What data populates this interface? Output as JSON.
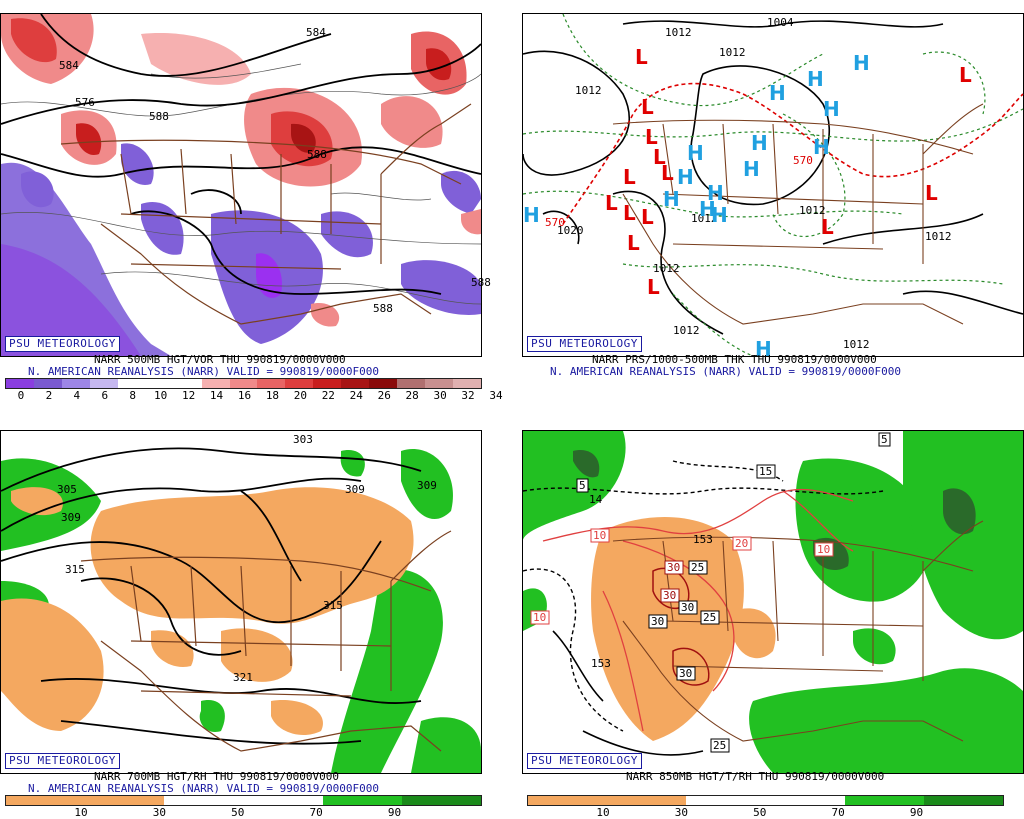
{
  "panels": {
    "p1": {
      "badge": "PSU METEOROLOGY",
      "line1": "NARR 500MB HGT/VOR THU 990819/0000V000",
      "line2": "N. AMERICAN REANALYSIS (NARR) VALID = 990819/0000F000",
      "contours": [
        "584",
        "576",
        "588",
        "588",
        "588",
        "588"
      ],
      "scale_ticks": [
        "0",
        "2",
        "4",
        "6",
        "8",
        "10",
        "12",
        "14",
        "16",
        "18",
        "20",
        "22",
        "24",
        "26",
        "28",
        "30",
        "32",
        "34"
      ],
      "scale_colors": [
        "#8a3ee0",
        "#7a5ad0",
        "#9d86e6",
        "#c6b8f0",
        "#ffffff",
        "#ffffff",
        "#ffffff",
        "#f6b0b0",
        "#f08a8a",
        "#e86464",
        "#de3e3e",
        "#c81e1e",
        "#a81414",
        "#8a0a0a",
        "#b07070",
        "#c89090",
        "#e0b0b0"
      ]
    },
    "p2": {
      "badge": "PSU METEOROLOGY",
      "line1": "NARR PRS/1000-500MB THK THU 990819/0000V000",
      "line2": "N. AMERICAN REANALYSIS (NARR) VALID = 990819/0000F000",
      "contours": [
        "1004",
        "1012",
        "1012",
        "1012",
        "1020",
        "1012",
        "1012",
        "1012",
        "1012",
        "1012",
        "1012",
        "570",
        "570"
      ]
    },
    "p3": {
      "badge": "PSU METEOROLOGY",
      "line1": "NARR 700MB HGT/RH THU 990819/0000V000",
      "line2": "N. AMERICAN REANALYSIS (NARR) VALID = 990819/0000F000",
      "contours": [
        "303",
        "309",
        "305",
        "309",
        "315",
        "315",
        "321"
      ],
      "scale_ticks": [
        "10",
        "30",
        "50",
        "70",
        "90"
      ]
    },
    "p4": {
      "badge": "PSU METEOROLOGY",
      "line1": "NARR 850MB HGT/T/RH THU 990819/0000V000",
      "contours": [
        "5",
        "5",
        "15",
        "14",
        "153",
        "153",
        "10",
        "10",
        "20",
        "10",
        "30",
        "30",
        "30",
        "30",
        "25",
        "25",
        "30",
        "25"
      ],
      "scale_ticks": [
        "10",
        "30",
        "50",
        "70",
        "90"
      ]
    }
  },
  "colors": {
    "vort_neg": "#8060d8",
    "vort_pos": "#e06060",
    "rh_dry": "#f4a860",
    "rh_moist": "#22c022",
    "border": "#7a4020",
    "low_letter": "#e00000",
    "high_letter": "#20a0e0",
    "caption_blue": "#1a1aa0"
  }
}
